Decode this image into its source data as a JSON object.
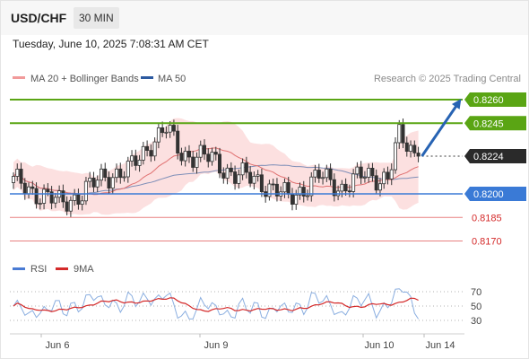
{
  "header": {
    "pair": "USD/CHF",
    "timeframe": "30 MIN",
    "datetime": "Tuesday, June 10, 2025 7:08:31 AM CET"
  },
  "legend": {
    "ma20": "MA 20 + Bollinger Bands",
    "ma50": "MA 50",
    "copyright": "Research © 2025 Trading Central"
  },
  "rsi_legend": {
    "rsi": "RSI",
    "ma9": "9MA"
  },
  "colors": {
    "resistance": "#5aa514",
    "support": "#3a7ad6",
    "minor_support": "#e88080",
    "current": "#2a2a2a",
    "up_candle": "#ffffff",
    "down_candle": "#333333",
    "bollinger": "#fbdada",
    "ma20": "#e07070",
    "ma50": "#7f8fb8",
    "rsi": "#8aaee0",
    "rsi_ma": "#d42a2a",
    "arrow": "#2763b3"
  },
  "chart_data": [
    {
      "type": "candlestick",
      "title": "USD/CHF",
      "x_labels": [
        "Jun 6",
        "Jun 9",
        "Jun 10",
        "Jun 14"
      ],
      "ylim": [
        0.816,
        0.8268
      ],
      "series": [
        {
          "name": "MA 20 + Bollinger Bands"
        },
        {
          "name": "MA 50"
        }
      ],
      "levels": [
        {
          "value": 0.826,
          "label": "0.8260",
          "kind": "resistance"
        },
        {
          "value": 0.8245,
          "label": "0.8245",
          "kind": "resistance"
        },
        {
          "value": 0.8224,
          "label": "0.8224",
          "kind": "current"
        },
        {
          "value": 0.82,
          "label": "0.8200",
          "kind": "support"
        },
        {
          "value": 0.8185,
          "label": "0.8185",
          "kind": "minor_support"
        },
        {
          "value": 0.817,
          "label": "0.8170",
          "kind": "minor_support"
        }
      ],
      "projection": {
        "from": 0.8224,
        "to": 0.826
      },
      "key_points": [
        {
          "x": 0,
          "v": 0.8208
        },
        {
          "x": 6,
          "v": 0.8201
        },
        {
          "x": 12,
          "v": 0.8194
        },
        {
          "x": 18,
          "v": 0.82
        },
        {
          "x": 24,
          "v": 0.8212
        },
        {
          "x": 30,
          "v": 0.8214
        },
        {
          "x": 36,
          "v": 0.8233
        },
        {
          "x": 40,
          "v": 0.8241
        },
        {
          "x": 44,
          "v": 0.8226
        },
        {
          "x": 52,
          "v": 0.8222
        },
        {
          "x": 58,
          "v": 0.8212
        },
        {
          "x": 64,
          "v": 0.8209
        },
        {
          "x": 72,
          "v": 0.8197
        },
        {
          "x": 80,
          "v": 0.8211
        },
        {
          "x": 86,
          "v": 0.8204
        },
        {
          "x": 92,
          "v": 0.8212
        },
        {
          "x": 98,
          "v": 0.821
        },
        {
          "x": 101,
          "v": 0.8236
        },
        {
          "x": 106,
          "v": 0.8224
        }
      ]
    },
    {
      "type": "line",
      "title": "RSI",
      "series": [
        {
          "name": "RSI"
        },
        {
          "name": "9MA"
        }
      ],
      "y_ticks": [
        70,
        50,
        30
      ],
      "ylim": [
        20,
        80
      ]
    }
  ]
}
